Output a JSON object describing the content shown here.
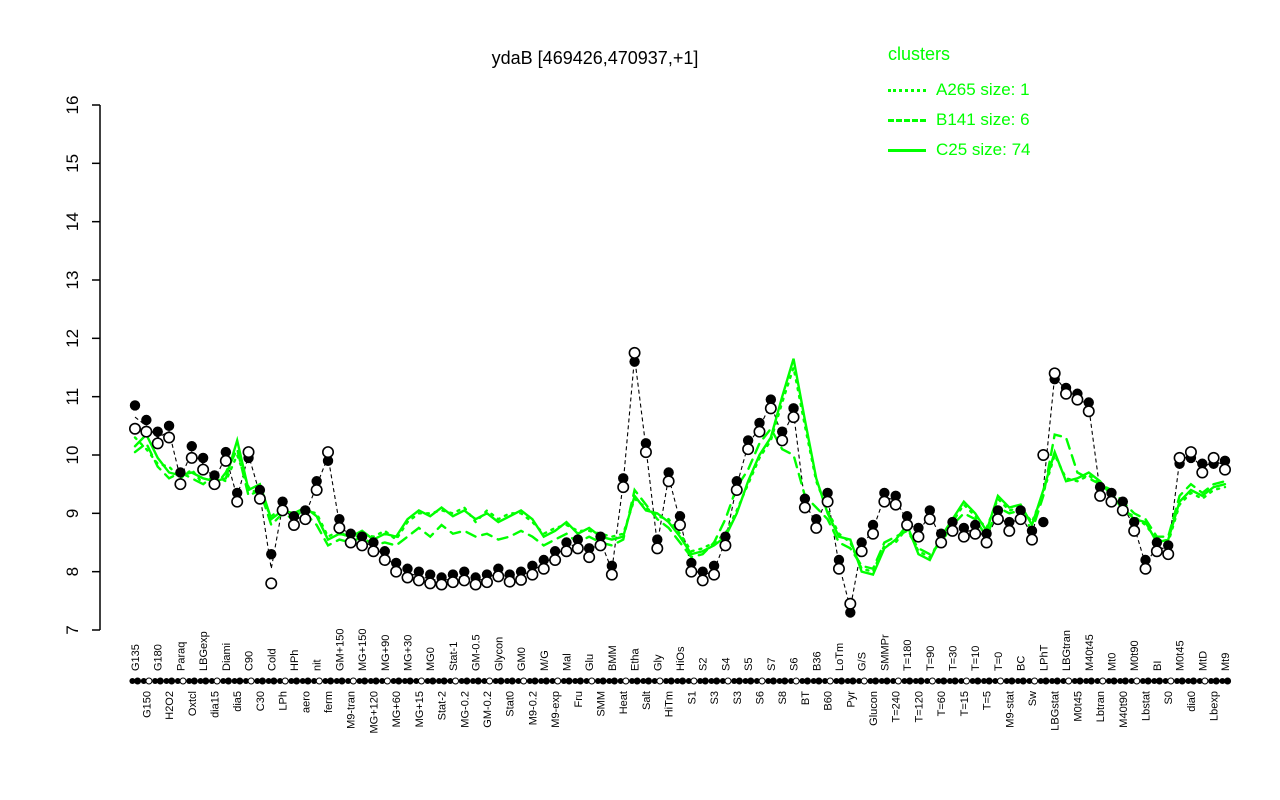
{
  "title": "ydaB [469426,470937,+1]",
  "legend": {
    "title": "clusters",
    "color": "#00ff00",
    "entries": [
      {
        "label": "A265 size: 1",
        "style": "dotted"
      },
      {
        "label": "B141 size: 6",
        "style": "dashed"
      },
      {
        "label": "C25 size: 74",
        "style": "solid"
      }
    ]
  },
  "colors": {
    "cluster_lines": "#00ff00",
    "gene_points": "#000000",
    "background": "#ffffff"
  },
  "chart_data": {
    "type": "line",
    "title": "ydaB [469426,470937,+1]",
    "xlabel": "",
    "ylabel": "",
    "ylim": [
      7,
      16
    ],
    "yticks": [
      7,
      8,
      9,
      10,
      11,
      12,
      13,
      14,
      15,
      16
    ],
    "grid": false,
    "legend_position": "top-right",
    "categories": [
      "G135",
      "G150",
      "G180",
      "H2O2",
      "Paraq",
      "Oxtcl",
      "LBGexp",
      "dia15",
      "Diami",
      "dia5",
      "C90",
      "C30",
      "Cold",
      "LPh",
      "HPh",
      "aero",
      "nit",
      "ferm",
      "GM+150",
      "M9-tran",
      "MG+150",
      "MG+120",
      "MG+90",
      "MG+60",
      "MG+30",
      "MG+15",
      "MG0",
      "Stat-2",
      "Stat-1",
      "MG-0.2",
      "GM-0.5",
      "GM-0.2",
      "Glycon",
      "Stat0",
      "GM0",
      "M9-0.2",
      "M/G",
      "M9-exp",
      "Mal",
      "Fru",
      "Glu",
      "SMM",
      "BMM",
      "Heat",
      "Etha",
      "Salt",
      "Gly",
      "HiTm",
      "HiOs",
      "S1",
      "S2",
      "S3",
      "S4",
      "S3",
      "S5",
      "S6",
      "S7",
      "S8",
      "S6",
      "BT",
      "B36",
      "B60",
      "LoTm",
      "Pyr",
      "G/S",
      "Glucon",
      "SMMPr",
      "T=240",
      "T=180",
      "T=120",
      "T=90",
      "T=60",
      "T=30",
      "T=15",
      "T=10",
      "T=5",
      "T=0",
      "M9-stat",
      "BC",
      "Sw",
      "LPhT",
      "LBGstat",
      "LBGtran",
      "M0t45",
      "M40t45",
      "Lbtran",
      "Mt0",
      "M40t90",
      "M0t90",
      "Lbstat",
      "BI",
      "S0",
      "M0t45",
      "dia0",
      "MtD",
      "Lbexp",
      "Mt9"
    ],
    "series": [
      {
        "name": "gene replicate (filled)",
        "type": "points",
        "marker": "filled-circle",
        "color": "#000000",
        "values": [
          10.85,
          10.6,
          10.4,
          10.5,
          9.7,
          10.15,
          9.95,
          9.65,
          10.05,
          9.35,
          9.95,
          9.4,
          8.3,
          9.2,
          8.95,
          9.05,
          9.55,
          9.9,
          8.9,
          8.65,
          8.6,
          8.5,
          8.35,
          8.15,
          8.05,
          8.0,
          7.95,
          7.9,
          7.95,
          8.0,
          7.9,
          7.95,
          8.05,
          7.95,
          8.0,
          8.1,
          8.2,
          8.35,
          8.5,
          8.55,
          8.4,
          8.6,
          8.1,
          9.6,
          11.6,
          10.2,
          8.55,
          9.7,
          8.95,
          8.15,
          8.0,
          8.1,
          8.6,
          9.55,
          10.25,
          10.55,
          10.95,
          10.4,
          10.8,
          9.25,
          8.9,
          9.35,
          8.2,
          7.3,
          8.5,
          8.8,
          9.35,
          9.3,
          8.95,
          8.75,
          9.05,
          8.65,
          8.85,
          8.75,
          8.8,
          8.65,
          9.05,
          8.85,
          9.05,
          8.7,
          8.85,
          11.3,
          11.15,
          11.05,
          10.9,
          9.45,
          9.35,
          9.2,
          8.85,
          8.2,
          8.5,
          8.45,
          9.85,
          9.95,
          9.85,
          9.85,
          9.9
        ]
      },
      {
        "name": "gene replicate (open)",
        "type": "points",
        "marker": "open-circle",
        "color": "#000000",
        "values": [
          10.45,
          10.4,
          10.2,
          10.3,
          9.5,
          9.95,
          9.75,
          9.5,
          9.9,
          9.2,
          10.05,
          9.25,
          7.8,
          9.05,
          8.8,
          8.9,
          9.4,
          10.05,
          8.75,
          8.5,
          8.45,
          8.35,
          8.2,
          8.0,
          7.9,
          7.85,
          7.8,
          7.78,
          7.82,
          7.85,
          7.78,
          7.82,
          7.92,
          7.83,
          7.86,
          7.95,
          8.05,
          8.2,
          8.35,
          8.4,
          8.25,
          8.45,
          7.95,
          9.45,
          11.75,
          10.05,
          8.4,
          9.55,
          8.8,
          8.0,
          7.85,
          7.95,
          8.45,
          9.4,
          10.1,
          10.4,
          10.8,
          10.25,
          10.65,
          9.1,
          8.75,
          9.2,
          8.05,
          7.45,
          8.35,
          8.65,
          9.2,
          9.15,
          8.8,
          8.6,
          8.9,
          8.5,
          8.7,
          8.6,
          8.65,
          8.5,
          8.9,
          8.7,
          8.9,
          8.55,
          10.0,
          11.4,
          11.05,
          10.95,
          10.75,
          9.3,
          9.2,
          9.05,
          8.7,
          8.05,
          8.35,
          8.3,
          9.95,
          10.05,
          9.7,
          9.95,
          9.75
        ]
      },
      {
        "name": "A265 size: 1",
        "type": "line",
        "style": "dotted",
        "color": "#00ff00",
        "values": [
          10.3,
          10.1,
          9.85,
          9.8,
          9.6,
          9.75,
          9.5,
          9.65,
          9.55,
          10.0,
          9.45,
          9.3,
          8.95,
          9.1,
          8.95,
          9.05,
          9.0,
          8.6,
          8.7,
          8.55,
          8.65,
          8.6,
          8.7,
          8.55,
          8.85,
          9.0,
          9.0,
          9.05,
          9.0,
          9.1,
          8.85,
          9.05,
          8.9,
          9.0,
          9.0,
          8.85,
          8.65,
          8.75,
          8.8,
          8.7,
          8.7,
          8.65,
          8.6,
          8.65,
          9.25,
          9.1,
          8.95,
          8.9,
          8.65,
          8.35,
          8.4,
          8.5,
          8.65,
          9.05,
          9.5,
          9.95,
          10.25,
          10.9,
          11.5,
          10.5,
          9.55,
          9.05,
          8.65,
          8.5,
          8.05,
          8.0,
          8.45,
          8.5,
          8.75,
          8.35,
          8.25,
          8.55,
          8.85,
          9.15,
          8.95,
          8.75,
          9.25,
          9.05,
          9.1,
          8.85,
          9.35,
          10.0,
          9.6,
          9.55,
          9.65,
          9.5,
          9.35,
          9.05,
          8.95,
          8.8,
          8.55,
          8.5,
          9.15,
          9.35,
          9.25,
          9.4,
          9.45
        ]
      },
      {
        "name": "B141 size: 6",
        "type": "line",
        "style": "dashed",
        "color": "#00ff00",
        "values": [
          10.05,
          10.2,
          9.8,
          9.6,
          9.7,
          9.6,
          9.5,
          9.45,
          9.7,
          10.1,
          9.3,
          9.4,
          8.8,
          9.0,
          8.9,
          9.0,
          8.8,
          8.45,
          8.55,
          8.5,
          8.6,
          8.45,
          8.5,
          8.45,
          8.6,
          8.75,
          8.6,
          8.8,
          8.65,
          8.7,
          8.6,
          8.65,
          8.55,
          8.6,
          8.7,
          8.6,
          8.45,
          8.55,
          8.65,
          8.5,
          8.6,
          8.5,
          8.45,
          8.55,
          9.4,
          9.15,
          8.9,
          8.75,
          8.5,
          8.25,
          8.3,
          8.5,
          8.9,
          9.45,
          9.75,
          10.2,
          10.45,
          10.1,
          10.0,
          9.3,
          9.1,
          8.9,
          8.5,
          8.4,
          8.1,
          8.05,
          8.5,
          8.6,
          8.7,
          8.4,
          8.3,
          8.5,
          8.8,
          9.0,
          8.9,
          8.6,
          9.1,
          9.0,
          9.05,
          8.7,
          9.3,
          10.35,
          10.3,
          9.7,
          9.6,
          9.5,
          9.4,
          9.2,
          9.0,
          8.9,
          8.6,
          8.6,
          9.3,
          9.5,
          9.35,
          9.5,
          9.55
        ]
      },
      {
        "name": "C25 size: 74",
        "type": "line",
        "style": "solid",
        "color": "#00ff00",
        "values": [
          10.15,
          10.35,
          9.95,
          9.7,
          9.65,
          9.7,
          9.6,
          9.55,
          9.6,
          10.25,
          9.4,
          9.5,
          8.9,
          9.05,
          9.0,
          9.1,
          8.95,
          8.55,
          8.65,
          8.6,
          8.7,
          8.55,
          8.65,
          8.6,
          8.9,
          9.05,
          8.95,
          9.1,
          8.95,
          9.05,
          8.9,
          9.0,
          8.85,
          8.95,
          9.05,
          8.9,
          8.6,
          8.7,
          8.85,
          8.65,
          8.75,
          8.6,
          8.55,
          8.6,
          9.3,
          9.05,
          9.0,
          8.85,
          8.6,
          8.3,
          8.35,
          8.45,
          8.6,
          9.0,
          9.55,
          10.0,
          10.3,
          11.0,
          11.65,
          10.6,
          9.6,
          9.0,
          8.6,
          8.55,
          8.0,
          7.95,
          8.4,
          8.55,
          8.8,
          8.3,
          8.2,
          8.6,
          8.9,
          9.2,
          9.0,
          8.7,
          9.3,
          9.1,
          9.15,
          8.8,
          9.4,
          10.05,
          9.55,
          9.6,
          9.7,
          9.55,
          9.3,
          9.1,
          8.9,
          8.85,
          8.5,
          8.55,
          9.2,
          9.4,
          9.3,
          9.45,
          9.5
        ]
      }
    ]
  }
}
